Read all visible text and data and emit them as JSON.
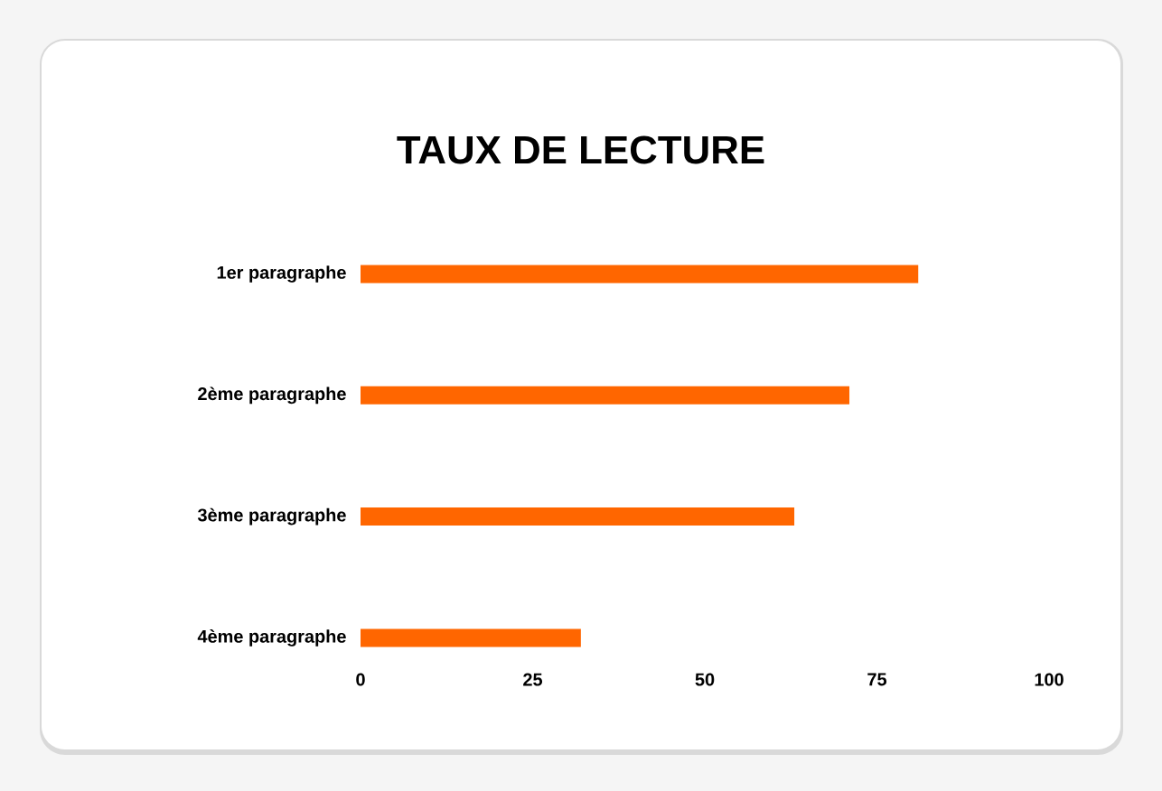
{
  "chart_data": {
    "type": "bar",
    "orientation": "horizontal",
    "title": "TAUX DE LECTURE",
    "categories": [
      "1er paragraphe",
      "2ème paragraphe",
      "3ème paragraphe",
      "4ème paragraphe"
    ],
    "values": [
      81,
      71,
      63,
      32
    ],
    "color": "#ff6600",
    "xlim": [
      0,
      100
    ],
    "xticks": [
      0,
      25,
      50,
      75,
      100
    ]
  }
}
